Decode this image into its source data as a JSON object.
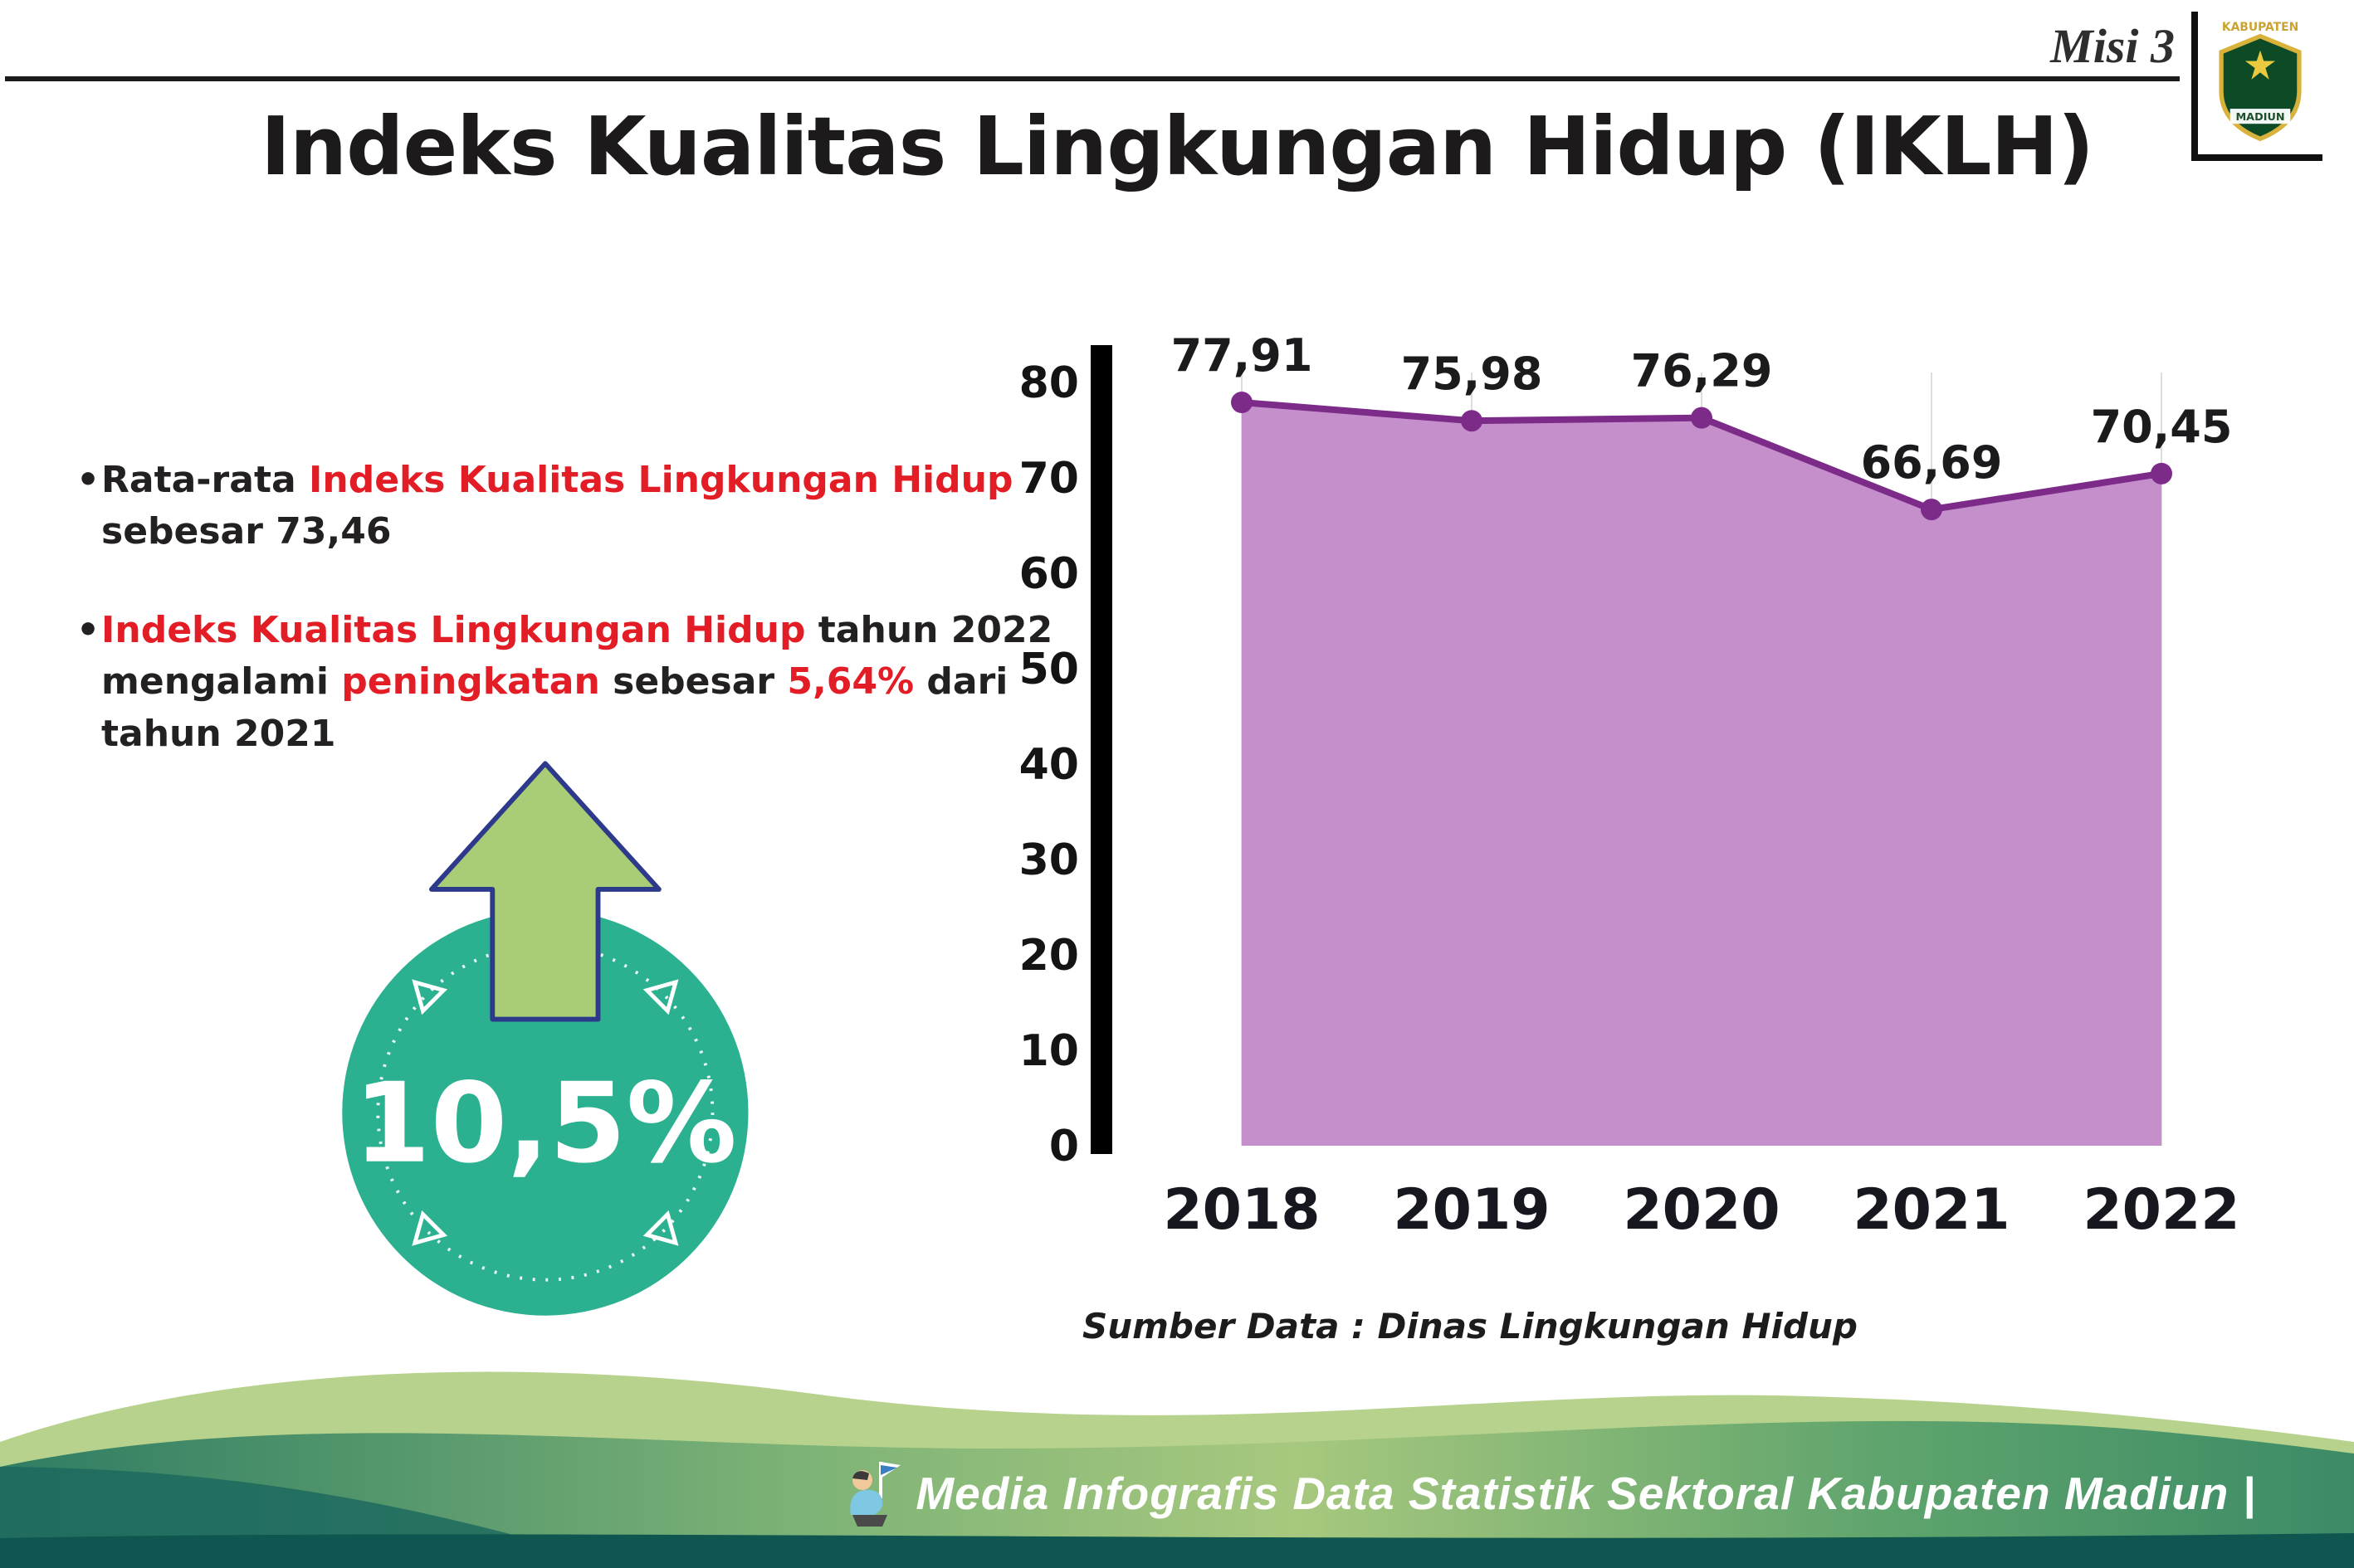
{
  "header": {
    "misi_label": "Misi 3",
    "title": "Indeks Kualitas Lingkungan Hidup (IKLH)",
    "logo": {
      "top_text": "KABUPATEN",
      "bottom_text": "MADIUN"
    }
  },
  "bullets": [
    {
      "segments": [
        {
          "text": "Rata-rata ",
          "style": "dark"
        },
        {
          "text": "Indeks Kualitas Lingkungan Hidup",
          "style": "red"
        },
        {
          "text": " sebesar 73,46",
          "style": "dark"
        }
      ]
    },
    {
      "segments": [
        {
          "text": "Indeks Kualitas Lingkungan Hidup",
          "style": "red"
        },
        {
          "text": " tahun 2022 mengalami ",
          "style": "dark"
        },
        {
          "text": "peningkatan",
          "style": "red"
        },
        {
          "text": " sebesar ",
          "style": "dark"
        },
        {
          "text": "5,64%",
          "style": "red"
        },
        {
          "text": " dari tahun 2021",
          "style": "dark"
        }
      ]
    }
  ],
  "badge": {
    "value": "10,5%"
  },
  "chart_data": {
    "type": "area",
    "title": "Indeks Kualitas Lingkungan Hidup (IKLH)",
    "categories": [
      "2018",
      "2019",
      "2020",
      "2021",
      "2022"
    ],
    "values": [
      77.91,
      75.98,
      76.29,
      66.69,
      70.45
    ],
    "value_labels": [
      "77,91",
      "75,98",
      "76,29",
      "66,69",
      "70,45"
    ],
    "ylim": [
      0,
      80
    ],
    "yticks": [
      0,
      10,
      20,
      30,
      40,
      50,
      60,
      70,
      80
    ],
    "grid": "vertical",
    "legend": "none",
    "colors": {
      "area": "#c48fcb",
      "line": "#7c2b89",
      "dot": "#7c2b89"
    },
    "source": "Sumber Data : Dinas Lingkungan Hidup"
  },
  "footer": {
    "text": "Media Infografis Data Statistik Sektoral Kabupaten Madiun |"
  },
  "colors": {
    "accent_red": "#e21d25",
    "badge_teal": "#2bb190",
    "arrow_green": "#a8cd76",
    "arrow_outline": "#2d3a8c",
    "footer_dark_teal": "#0e564f"
  }
}
